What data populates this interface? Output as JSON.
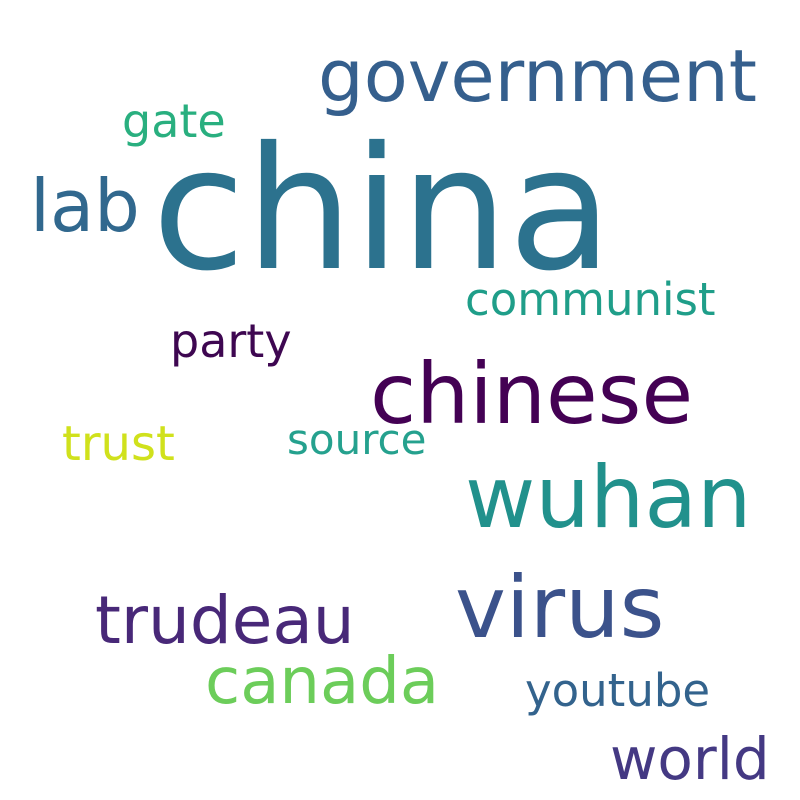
{
  "words": [
    {
      "text": "china",
      "color": "#2c728e"
    },
    {
      "text": "government",
      "color": "#355f8d"
    },
    {
      "text": "chinese",
      "color": "#440154"
    },
    {
      "text": "wuhan",
      "color": "#21918c"
    },
    {
      "text": "virus",
      "color": "#3b528b"
    },
    {
      "text": "lab",
      "color": "#31688e"
    },
    {
      "text": "trudeau",
      "color": "#482878"
    },
    {
      "text": "canada",
      "color": "#6ccd5a"
    },
    {
      "text": "world",
      "color": "#443983"
    },
    {
      "text": "communist",
      "color": "#1f9e89"
    },
    {
      "text": "party",
      "color": "#3e0751"
    },
    {
      "text": "gate",
      "color": "#29af7f"
    },
    {
      "text": "trust",
      "color": "#d0e11c"
    },
    {
      "text": "source",
      "color": "#25a18e"
    },
    {
      "text": "youtube",
      "color": "#33638d"
    }
  ]
}
